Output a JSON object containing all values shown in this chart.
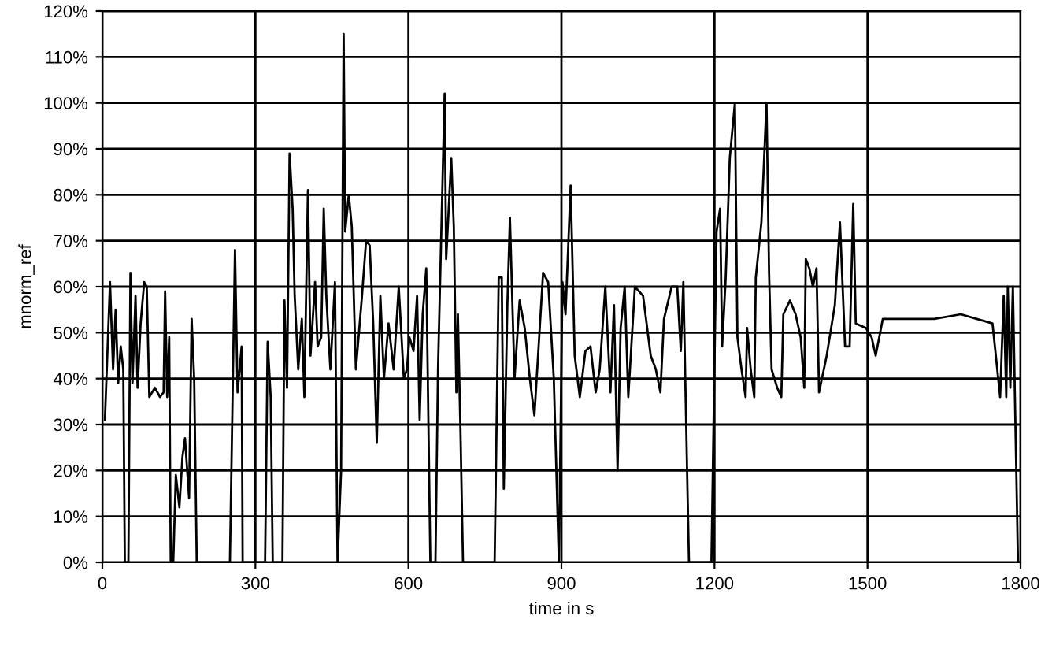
{
  "chart_data": {
    "type": "line",
    "xlabel": "time in s",
    "ylabel": "mnorm_ref",
    "x": [
      5,
      15,
      21,
      26,
      31,
      36,
      41,
      44,
      51,
      55,
      59,
      65,
      69,
      75,
      82,
      87,
      92,
      103,
      113,
      120,
      123,
      127,
      131,
      134,
      139,
      144,
      151,
      157,
      162,
      170,
      175,
      180,
      185,
      250,
      260,
      265,
      273,
      275,
      319,
      324,
      330,
      334,
      353,
      357,
      362,
      367,
      373,
      377,
      384,
      391,
      396,
      403,
      408,
      417,
      422,
      429,
      434,
      439,
      447,
      456,
      461,
      468,
      473,
      476,
      483,
      489,
      497,
      509,
      517,
      524,
      531,
      538,
      545,
      552,
      561,
      571,
      581,
      591,
      597,
      602,
      610,
      617,
      622,
      628,
      635,
      643,
      653,
      658,
      671,
      674,
      684,
      689,
      694,
      697,
      702,
      707,
      769,
      777,
      783,
      787,
      794,
      799,
      808,
      818,
      828,
      838,
      847,
      864,
      874,
      885,
      895,
      902,
      908,
      918,
      926,
      936,
      947,
      957,
      967,
      975,
      986,
      996,
      1003,
      1010,
      1016,
      1024,
      1031,
      1044,
      1060,
      1075,
      1085,
      1094,
      1101,
      1116,
      1127,
      1134,
      1139,
      1147,
      1150,
      1194,
      1199,
      1204,
      1211,
      1215,
      1222,
      1230,
      1240,
      1245,
      1253,
      1261,
      1264,
      1271,
      1278,
      1281,
      1292,
      1302,
      1307,
      1312,
      1323,
      1331,
      1335,
      1348,
      1359,
      1369,
      1376,
      1379,
      1386,
      1393,
      1400,
      1405,
      1420,
      1436,
      1446,
      1456,
      1465,
      1472,
      1477,
      1497,
      1508,
      1516,
      1530,
      1590,
      1631,
      1683,
      1714,
      1745,
      1760,
      1767,
      1772,
      1775,
      1780,
      1785,
      1795
    ],
    "series": [
      {
        "color": "#000000",
        "values": [
          31,
          61,
          42,
          55,
          39,
          47,
          42,
          0,
          0,
          63,
          39,
          58,
          38,
          52,
          61,
          60,
          36,
          38,
          36,
          37,
          59,
          36,
          49,
          0,
          0,
          19,
          12,
          23,
          27,
          14,
          53,
          40,
          0,
          0,
          68,
          37,
          47,
          0,
          0,
          48,
          36,
          0,
          0,
          57,
          38,
          89,
          77,
          58,
          42,
          53,
          36,
          81,
          45,
          61,
          47,
          49,
          77,
          58,
          42,
          61,
          0,
          20,
          115,
          72,
          80,
          73,
          42,
          58,
          70,
          69,
          52,
          26,
          58,
          40,
          52,
          42,
          60,
          40,
          42,
          49,
          46,
          58,
          31,
          54,
          64,
          0,
          0,
          42,
          102,
          66,
          88,
          73,
          37,
          54,
          29,
          0,
          0,
          62,
          62,
          16,
          56,
          75,
          40,
          57,
          51,
          40,
          32,
          63,
          61,
          40,
          0,
          61,
          54,
          82,
          45,
          36,
          46,
          47,
          37,
          42,
          60,
          37,
          56,
          20,
          51,
          60,
          36,
          60,
          58,
          45,
          42,
          37,
          53,
          60,
          60,
          46,
          61,
          16,
          0,
          0,
          36,
          72,
          77,
          47,
          62,
          88,
          100,
          49,
          42,
          36,
          51,
          42,
          36,
          62,
          74,
          100,
          63,
          42,
          38,
          36,
          54,
          57,
          54,
          49,
          38,
          66,
          64,
          60,
          64,
          37,
          45,
          56,
          74,
          47,
          47,
          78,
          52,
          51,
          49,
          45,
          53,
          53,
          53,
          54,
          53,
          52,
          36,
          58,
          36,
          60,
          38,
          60,
          0
        ]
      }
    ],
    "xlim": [
      0,
      1800
    ],
    "xticks": [
      0,
      300,
      600,
      900,
      1200,
      1500,
      1800
    ],
    "ylim": [
      0,
      120
    ],
    "yticks": [
      {
        "value": 0,
        "label": "0%"
      },
      {
        "value": 10,
        "label": "10%"
      },
      {
        "value": 20,
        "label": "20%"
      },
      {
        "value": 30,
        "label": "30%"
      },
      {
        "value": 40,
        "label": "40%"
      },
      {
        "value": 50,
        "label": "50%"
      },
      {
        "value": 60,
        "label": "60%"
      },
      {
        "value": 70,
        "label": "70%"
      },
      {
        "value": 80,
        "label": "80%"
      },
      {
        "value": 90,
        "label": "90%"
      },
      {
        "value": 100,
        "label": "100%"
      },
      {
        "value": 110,
        "label": "110%"
      },
      {
        "value": 120,
        "label": "120%"
      }
    ],
    "grid": true
  }
}
